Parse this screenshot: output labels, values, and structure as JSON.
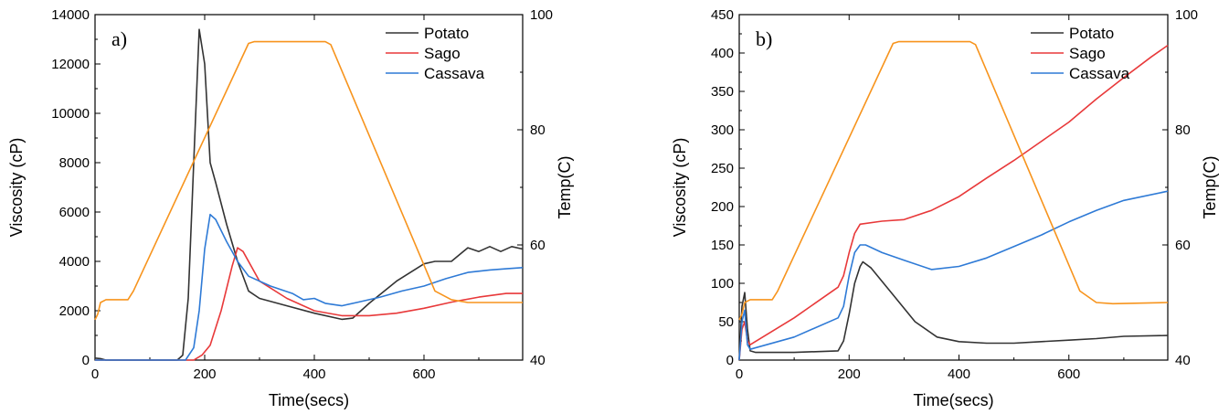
{
  "chart_data": [
    {
      "type": "line",
      "panel_label": "a)",
      "xlabel": "Time(secs)",
      "ylabel": "Viscosity (cP)",
      "y2label": "Temp(C)",
      "xlim": [
        0,
        780
      ],
      "ylim": [
        0,
        14000
      ],
      "y2lim": [
        40,
        100
      ],
      "x_ticks": [
        "0",
        "200",
        "400",
        "600"
      ],
      "x_tick_values": [
        0,
        200,
        400,
        600
      ],
      "y_ticks": [
        "0",
        "2000",
        "4000",
        "6000",
        "8000",
        "10000",
        "12000",
        "14000"
      ],
      "y_tick_values": [
        0,
        2000,
        4000,
        6000,
        8000,
        10000,
        12000,
        14000
      ],
      "y2_ticks": [
        "40",
        "60",
        "80",
        "100"
      ],
      "y2_tick_values": [
        40,
        60,
        80,
        100
      ],
      "legend_position": "top-right",
      "series": [
        {
          "name": "Potato",
          "color": "#333333",
          "axis": "left",
          "points": [
            [
              0,
              80
            ],
            [
              10,
              60
            ],
            [
              20,
              0
            ],
            [
              150,
              0
            ],
            [
              160,
              200
            ],
            [
              170,
              2500
            ],
            [
              180,
              8000
            ],
            [
              190,
              13400
            ],
            [
              200,
              12000
            ],
            [
              210,
              8000
            ],
            [
              220,
              7200
            ],
            [
              240,
              5500
            ],
            [
              260,
              4000
            ],
            [
              280,
              2800
            ],
            [
              300,
              2500
            ],
            [
              350,
              2200
            ],
            [
              400,
              1900
            ],
            [
              450,
              1650
            ],
            [
              470,
              1700
            ],
            [
              500,
              2300
            ],
            [
              550,
              3200
            ],
            [
              600,
              3900
            ],
            [
              620,
              4000
            ],
            [
              650,
              4000
            ],
            [
              680,
              4550
            ],
            [
              700,
              4400
            ],
            [
              720,
              4600
            ],
            [
              740,
              4400
            ],
            [
              760,
              4600
            ],
            [
              780,
              4500
            ]
          ]
        },
        {
          "name": "Sago",
          "color": "#e8393a",
          "axis": "left",
          "points": [
            [
              0,
              0
            ],
            [
              180,
              0
            ],
            [
              195,
              200
            ],
            [
              210,
              600
            ],
            [
              230,
              2000
            ],
            [
              250,
              3800
            ],
            [
              260,
              4550
            ],
            [
              270,
              4400
            ],
            [
              300,
              3200
            ],
            [
              350,
              2500
            ],
            [
              400,
              2000
            ],
            [
              450,
              1800
            ],
            [
              500,
              1800
            ],
            [
              550,
              1900
            ],
            [
              600,
              2100
            ],
            [
              650,
              2350
            ],
            [
              700,
              2550
            ],
            [
              750,
              2700
            ],
            [
              780,
              2700
            ]
          ]
        },
        {
          "name": "Cassava",
          "color": "#2e7ad6",
          "axis": "left",
          "points": [
            [
              0,
              0
            ],
            [
              165,
              0
            ],
            [
              180,
              500
            ],
            [
              190,
              2000
            ],
            [
              200,
              4500
            ],
            [
              210,
              5900
            ],
            [
              220,
              5700
            ],
            [
              240,
              4800
            ],
            [
              260,
              4000
            ],
            [
              280,
              3400
            ],
            [
              320,
              3000
            ],
            [
              360,
              2700
            ],
            [
              380,
              2450
            ],
            [
              400,
              2500
            ],
            [
              420,
              2300
            ],
            [
              450,
              2200
            ],
            [
              480,
              2350
            ],
            [
              520,
              2550
            ],
            [
              560,
              2800
            ],
            [
              600,
              3000
            ],
            [
              640,
              3300
            ],
            [
              680,
              3550
            ],
            [
              720,
              3650
            ],
            [
              750,
              3700
            ],
            [
              780,
              3750
            ]
          ]
        },
        {
          "name": "Temp",
          "color": "#f7941d",
          "axis": "right",
          "points": [
            [
              0,
              47
            ],
            [
              5,
              48
            ],
            [
              10,
              50
            ],
            [
              20,
              50.5
            ],
            [
              60,
              50.5
            ],
            [
              70,
              52
            ],
            [
              280,
              95
            ],
            [
              290,
              95.3
            ],
            [
              350,
              95.3
            ],
            [
              420,
              95.3
            ],
            [
              430,
              94.8
            ],
            [
              620,
              52
            ],
            [
              650,
              50.5
            ],
            [
              680,
              50
            ],
            [
              780,
              50
            ]
          ]
        }
      ]
    },
    {
      "type": "line",
      "panel_label": "b)",
      "xlabel": "Time(secs)",
      "ylabel": "Viscosity (cP)",
      "y2label": "Temp(C)",
      "xlim": [
        0,
        780
      ],
      "ylim": [
        0,
        450
      ],
      "y2lim": [
        40,
        100
      ],
      "x_ticks": [
        "0",
        "200",
        "400",
        "600"
      ],
      "x_tick_values": [
        0,
        200,
        400,
        600
      ],
      "y_ticks": [
        "0",
        "50",
        "100",
        "150",
        "200",
        "250",
        "300",
        "350",
        "400",
        "450"
      ],
      "y_tick_values": [
        0,
        50,
        100,
        150,
        200,
        250,
        300,
        350,
        400,
        450
      ],
      "y2_ticks": [
        "40",
        "60",
        "80",
        "100"
      ],
      "y2_tick_values": [
        40,
        60,
        80,
        100
      ],
      "legend_position": "top-right",
      "series": [
        {
          "name": "Potato",
          "color": "#333333",
          "axis": "left",
          "points": [
            [
              0,
              0
            ],
            [
              5,
              70
            ],
            [
              10,
              88
            ],
            [
              15,
              40
            ],
            [
              20,
              12
            ],
            [
              30,
              10
            ],
            [
              100,
              10
            ],
            [
              180,
              12
            ],
            [
              190,
              25
            ],
            [
              200,
              60
            ],
            [
              210,
              100
            ],
            [
              220,
              122
            ],
            [
              225,
              128
            ],
            [
              240,
              120
            ],
            [
              280,
              85
            ],
            [
              320,
              50
            ],
            [
              360,
              30
            ],
            [
              400,
              24
            ],
            [
              450,
              22
            ],
            [
              500,
              22
            ],
            [
              550,
              24
            ],
            [
              600,
              26
            ],
            [
              650,
              28
            ],
            [
              700,
              31
            ],
            [
              780,
              32
            ]
          ]
        },
        {
          "name": "Sago",
          "color": "#e8393a",
          "axis": "left",
          "points": [
            [
              0,
              0
            ],
            [
              5,
              40
            ],
            [
              10,
              50
            ],
            [
              15,
              25
            ],
            [
              20,
              20
            ],
            [
              100,
              55
            ],
            [
              180,
              95
            ],
            [
              190,
              110
            ],
            [
              200,
              140
            ],
            [
              210,
              165
            ],
            [
              220,
              177
            ],
            [
              260,
              181
            ],
            [
              300,
              183
            ],
            [
              350,
              195
            ],
            [
              400,
              213
            ],
            [
              450,
              237
            ],
            [
              500,
              260
            ],
            [
              550,
              285
            ],
            [
              600,
              310
            ],
            [
              650,
              340
            ],
            [
              700,
              368
            ],
            [
              750,
              395
            ],
            [
              780,
              410
            ]
          ]
        },
        {
          "name": "Cassava",
          "color": "#2e7ad6",
          "axis": "left",
          "points": [
            [
              0,
              0
            ],
            [
              5,
              50
            ],
            [
              10,
              65
            ],
            [
              15,
              20
            ],
            [
              20,
              14
            ],
            [
              100,
              30
            ],
            [
              180,
              55
            ],
            [
              190,
              70
            ],
            [
              200,
              110
            ],
            [
              210,
              140
            ],
            [
              220,
              150
            ],
            [
              230,
              150
            ],
            [
              260,
              140
            ],
            [
              300,
              130
            ],
            [
              350,
              118
            ],
            [
              400,
              122
            ],
            [
              450,
              133
            ],
            [
              500,
              148
            ],
            [
              550,
              163
            ],
            [
              600,
              180
            ],
            [
              650,
              195
            ],
            [
              700,
              208
            ],
            [
              780,
              220
            ]
          ]
        },
        {
          "name": "Temp",
          "color": "#f7941d",
          "axis": "right",
          "points": [
            [
              0,
              47
            ],
            [
              5,
              48
            ],
            [
              10,
              50
            ],
            [
              20,
              50.5
            ],
            [
              60,
              50.5
            ],
            [
              70,
              52
            ],
            [
              280,
              95
            ],
            [
              290,
              95.3
            ],
            [
              350,
              95.3
            ],
            [
              420,
              95.3
            ],
            [
              430,
              94.8
            ],
            [
              620,
              52
            ],
            [
              650,
              50
            ],
            [
              680,
              49.8
            ],
            [
              780,
              50
            ]
          ]
        }
      ]
    }
  ]
}
